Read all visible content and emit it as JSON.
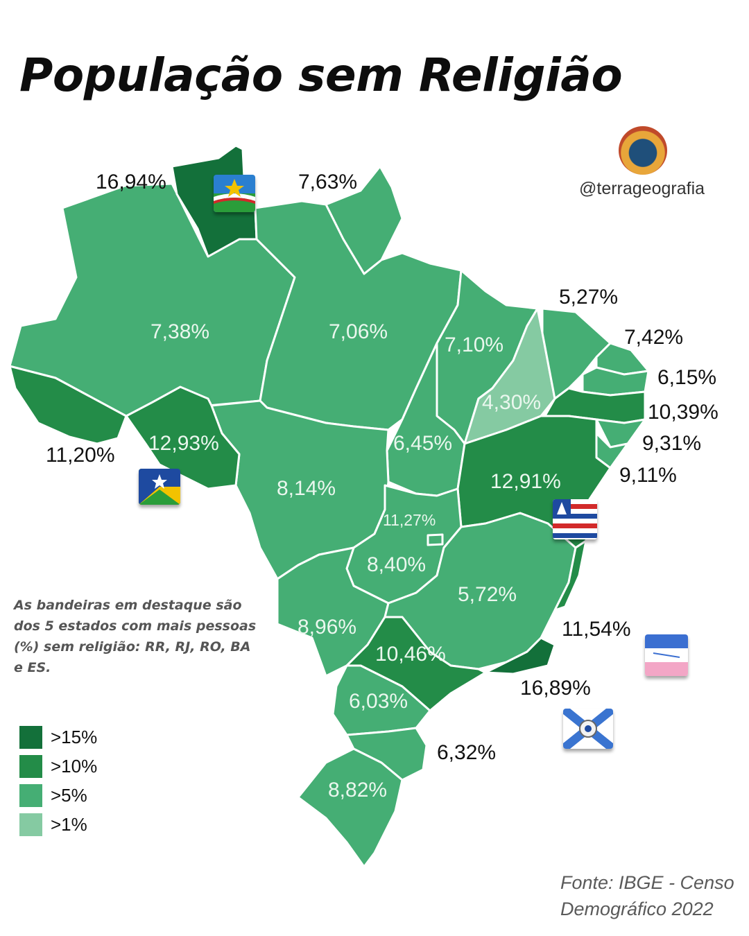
{
  "title": "População sem Religião",
  "handle": "@terrageografia",
  "note": "As bandeiras em destaque são dos 5 estados com mais pessoas (%) sem religião: RR, RJ, RO, BA e ES.",
  "source_line1": "Fonte: IBGE - Censo",
  "source_line2": "Demográfico 2022",
  "legend": [
    {
      "label": ">15%",
      "color": "#13703a"
    },
    {
      "label": ">10%",
      "color": "#238c48"
    },
    {
      "label": ">5%",
      "color": "#45ae74"
    },
    {
      "label": ">1%",
      "color": "#85caa2"
    }
  ],
  "states": {
    "RR": {
      "value": "16,94%"
    },
    "AP": {
      "value": "7,63%"
    },
    "AM": {
      "value": "7,38%"
    },
    "PA": {
      "value": "7,06%"
    },
    "MA": {
      "value": "7,10%"
    },
    "CE": {
      "value": "5,27%"
    },
    "RN": {
      "value": "7,42%"
    },
    "PB": {
      "value": "6,15%"
    },
    "PE": {
      "value": "10,39%"
    },
    "AL": {
      "value": "9,31%"
    },
    "SE": {
      "value": "9,11%"
    },
    "PI": {
      "value": "4,30%"
    },
    "AC": {
      "value": "11,20%"
    },
    "RO": {
      "value": "12,93%"
    },
    "TO": {
      "value": "6,45%"
    },
    "BA": {
      "value": "12,91%"
    },
    "MT": {
      "value": "8,14%"
    },
    "DF": {
      "value": "11,27%"
    },
    "GO": {
      "value": "8,40%"
    },
    "MG": {
      "value": "5,72%"
    },
    "MS": {
      "value": "8,96%"
    },
    "ES": {
      "value": "11,54%"
    },
    "SP": {
      "value": "10,46%"
    },
    "RJ": {
      "value": "16,89%"
    },
    "PR": {
      "value": "6,03%"
    },
    "SC": {
      "value": "6,32%"
    },
    "RS": {
      "value": "8,82%"
    }
  }
}
